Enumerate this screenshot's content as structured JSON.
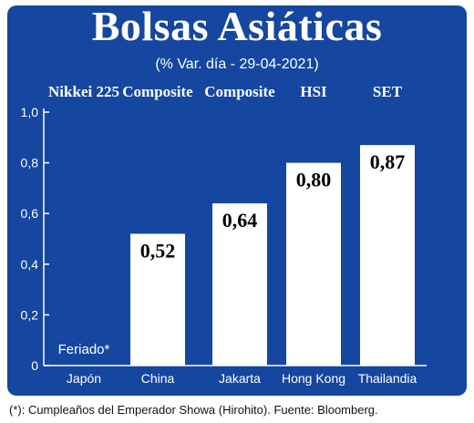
{
  "title": "Bolsas Asiáticas",
  "subtitle": "(% Var. día - 29-04-2021)",
  "footnote": "(*): Cumpleaños del Emperador Showa (Hirohito). Fuente: Bloomberg.",
  "colors": {
    "background": "#1546a0",
    "bar": "#ffffff",
    "text": "#ffffff",
    "value_text": "#000000"
  },
  "chart_data": {
    "type": "bar",
    "categories": [
      "Japón",
      "China",
      "Jakarta",
      "Hong Kong",
      "Thailandia"
    ],
    "index_names": [
      "Nikkei 225",
      "Composite",
      "Composite",
      "HSI",
      "SET"
    ],
    "values": [
      null,
      0.52,
      0.64,
      0.8,
      0.87
    ],
    "value_labels": [
      "",
      "0,52",
      "0,64",
      "0,80",
      "0,87"
    ],
    "annotations": [
      {
        "category": "Japón",
        "text": "Feriado*"
      }
    ],
    "yticks": [
      "0",
      "0,2",
      "0,4",
      "0,6",
      "0,8",
      "1,0"
    ],
    "ylim": [
      0,
      1.0
    ],
    "grid": false,
    "legend": "none"
  }
}
